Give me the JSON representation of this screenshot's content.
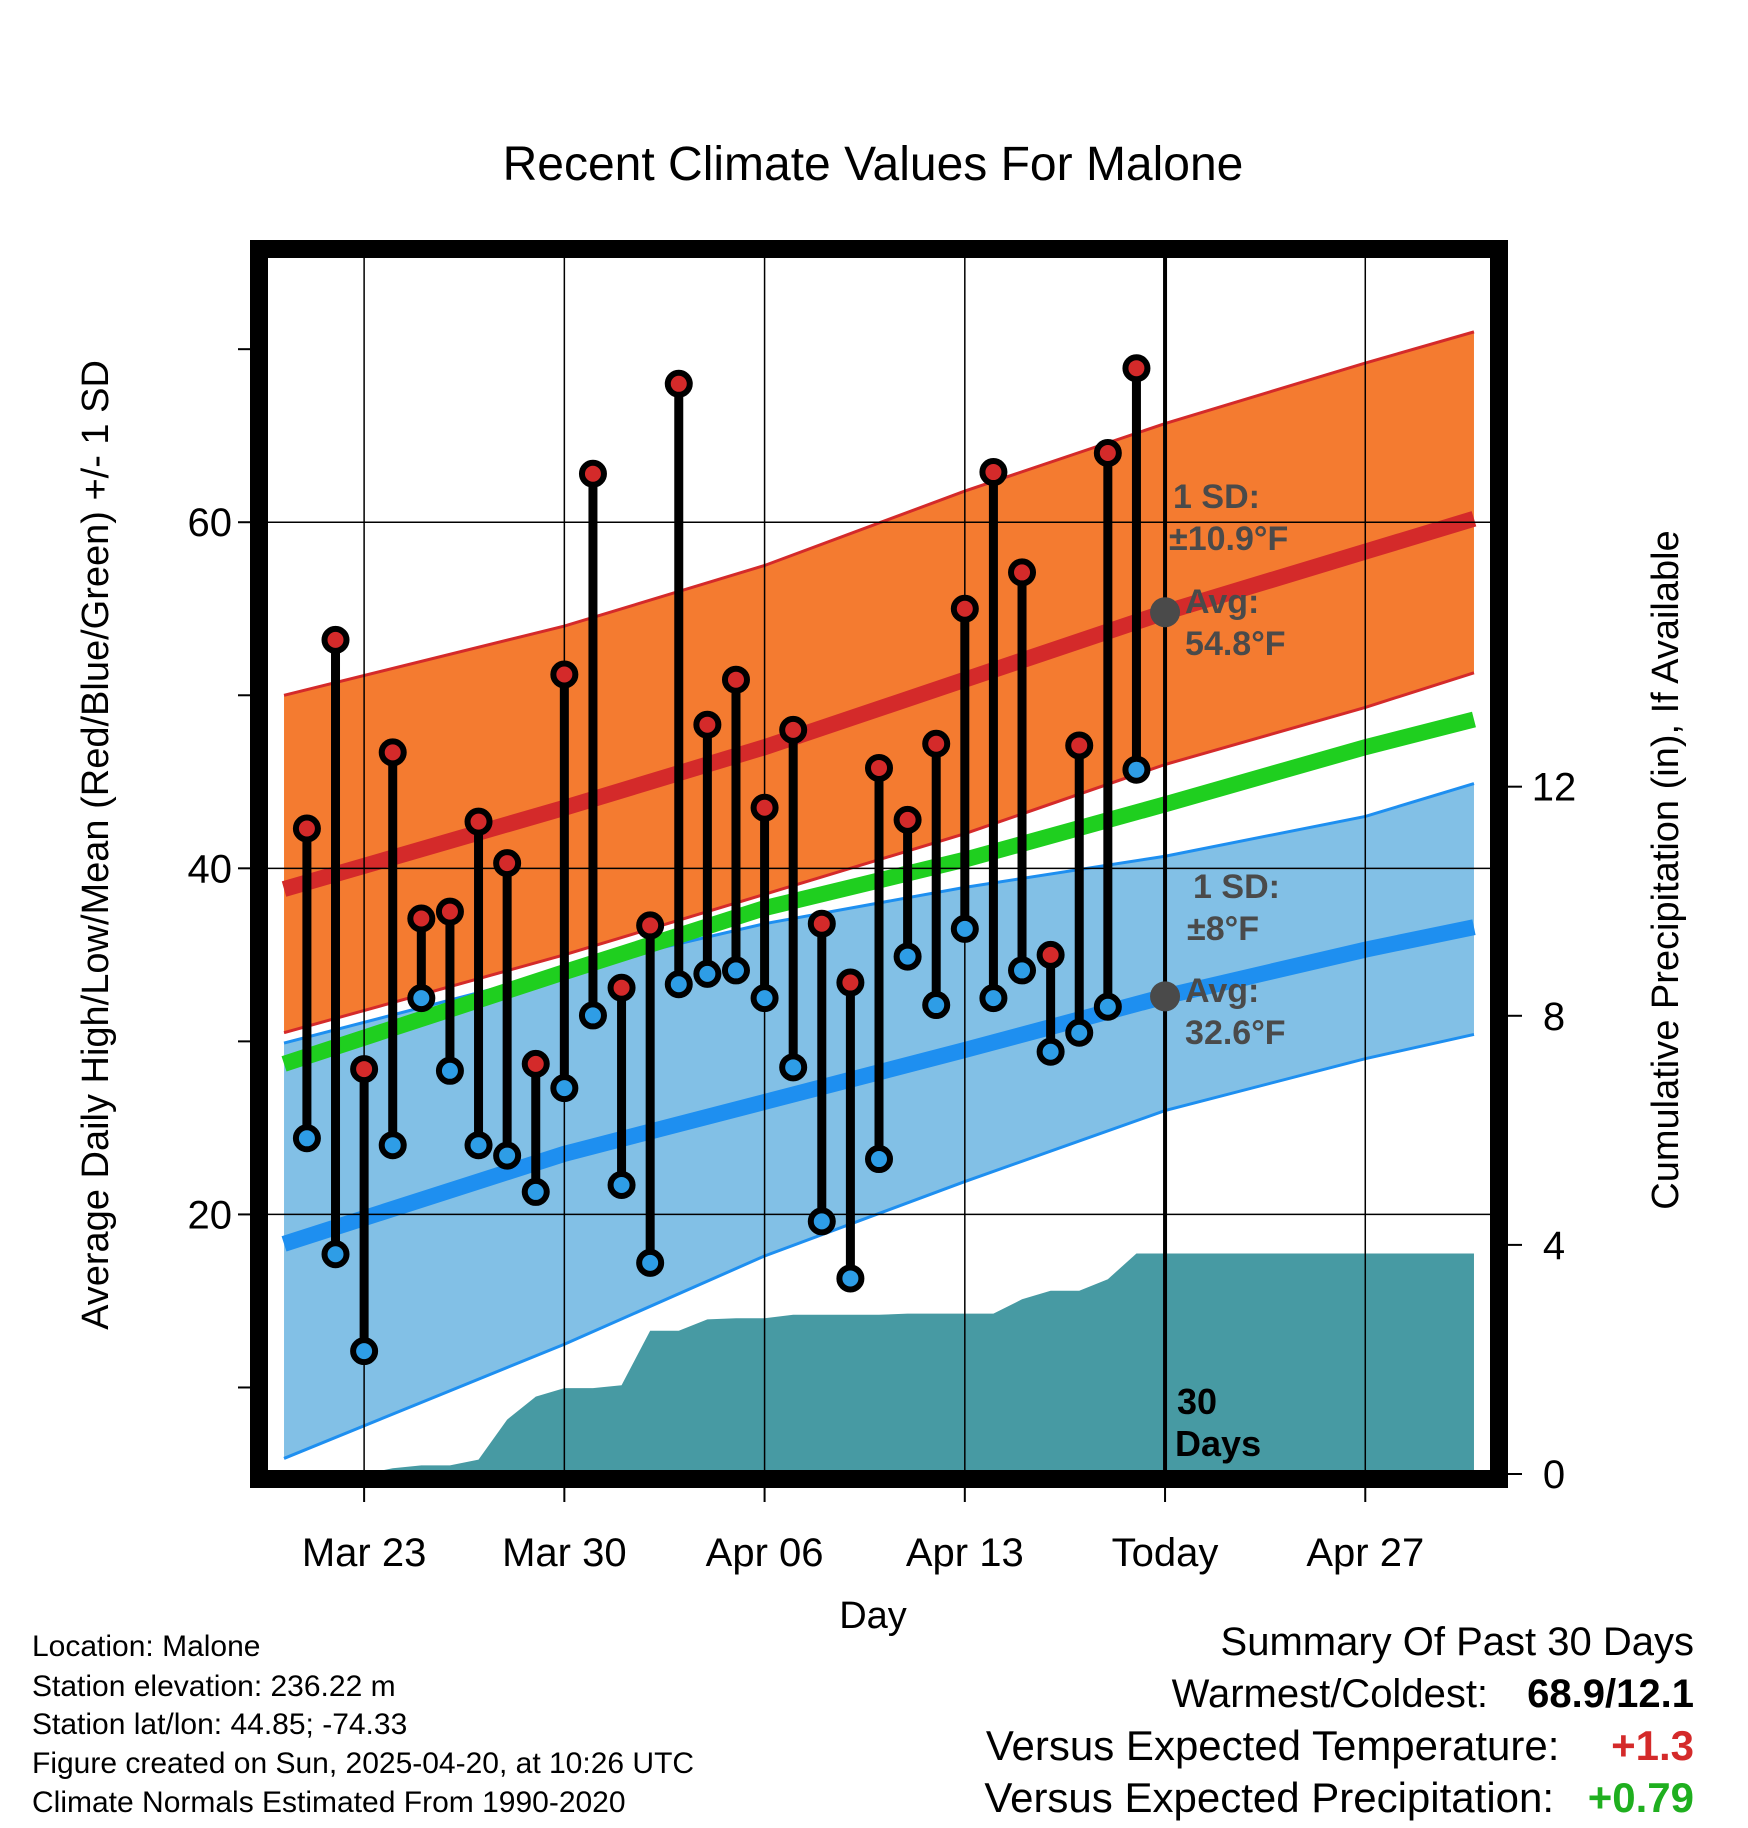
{
  "chart_data": {
    "type": "line",
    "title": "Recent Climate Values For Malone",
    "xlabel": "Day",
    "ylabel_left": "Average Daily High/Low/Mean (Red/Blue/Green) +/- 1 SD",
    "ylabel_right": "Cumulative Precipitation (in), If Available",
    "x_range": [
      -3.5,
      39.5
    ],
    "ylim_left": [
      5,
      75.5
    ],
    "ylim_right": [
      0,
      21.3
    ],
    "x_tick_positions": [
      0,
      7,
      14,
      21,
      28,
      35
    ],
    "x_tick_labels": [
      "Mar 23",
      "Mar 30",
      "Apr 06",
      "Apr 13",
      "Today",
      "Apr 27"
    ],
    "y_ticks_left": [
      20,
      40,
      60
    ],
    "y_minor_ticks_left": [
      10,
      30,
      50,
      70
    ],
    "y_ticks_right": [
      0,
      4,
      8,
      12
    ],
    "grid": true,
    "today_index": 28,
    "observations": {
      "day_index": [
        -2,
        -1,
        0,
        1,
        2,
        3,
        4,
        5,
        6,
        7,
        8,
        9,
        10,
        11,
        12,
        13,
        14,
        15,
        16,
        17,
        18,
        19,
        20,
        21,
        22,
        23,
        24,
        25,
        26,
        27
      ],
      "high": [
        42.3,
        53.2,
        28.4,
        46.7,
        37.1,
        37.5,
        42.7,
        40.3,
        28.7,
        51.2,
        62.8,
        33.1,
        36.7,
        68.0,
        48.3,
        50.9,
        43.5,
        48.0,
        36.8,
        33.4,
        45.8,
        42.8,
        47.2,
        55.0,
        62.9,
        57.1,
        35.0,
        47.1,
        64.0,
        68.9
      ],
      "low": [
        24.4,
        17.7,
        12.1,
        24.0,
        32.5,
        28.3,
        24.0,
        23.4,
        21.3,
        27.3,
        31.5,
        21.7,
        17.2,
        33.3,
        33.9,
        34.1,
        32.5,
        28.5,
        19.6,
        16.3,
        23.2,
        34.9,
        32.1,
        36.5,
        32.5,
        34.1,
        29.4,
        30.5,
        32.0,
        45.7
      ]
    },
    "normals": {
      "day_index": [
        -2.8,
        7,
        14,
        21,
        28,
        35,
        38.8
      ],
      "high_mean": [
        38.8,
        43.5,
        47.0,
        50.9,
        54.8,
        58.3,
        60.2
      ],
      "high_upper": [
        50.0,
        54.0,
        57.5,
        61.8,
        65.7,
        69.2,
        71.0
      ],
      "high_lower": [
        30.5,
        35.0,
        38.5,
        42.0,
        46.0,
        49.3,
        51.3
      ],
      "mean": [
        28.7,
        34.0,
        37.7,
        40.5,
        43.7,
        47.0,
        48.6
      ],
      "low_mean": [
        18.3,
        23.5,
        26.5,
        29.5,
        32.6,
        35.3,
        36.6
      ],
      "low_upper": [
        29.9,
        34.1,
        36.8,
        38.9,
        40.7,
        43.0,
        44.9
      ],
      "low_lower": [
        5.9,
        12.5,
        17.6,
        21.9,
        26.0,
        29.0,
        30.4
      ]
    },
    "precipitation": {
      "day_index": [
        -2.8,
        0,
        1,
        2,
        3,
        4,
        5,
        6,
        7,
        8,
        9,
        10,
        11,
        12,
        13,
        14,
        15,
        16,
        17,
        18,
        19,
        20,
        21,
        22,
        23,
        24,
        25,
        26,
        27,
        38.8
      ],
      "cumulative": [
        0.0,
        0.0,
        0.1,
        0.15,
        0.15,
        0.25,
        0.95,
        1.35,
        1.5,
        1.5,
        1.55,
        2.5,
        2.5,
        2.7,
        2.72,
        2.72,
        2.78,
        2.78,
        2.78,
        2.78,
        2.8,
        2.8,
        2.8,
        2.8,
        3.05,
        3.2,
        3.2,
        3.4,
        3.85,
        3.85
      ]
    },
    "annotations": {
      "high_sd_line1": "1 SD:",
      "high_sd_line2": "±10.9°F",
      "high_avg_line1": "Avg:",
      "high_avg_line2": "54.8°F",
      "low_sd_line1": "1 SD:",
      "low_sd_line2": "±8°F",
      "low_avg_line1": "Avg:",
      "low_avg_line2": "32.6°F",
      "window_line1": "30",
      "window_line2": "Days"
    },
    "colors": {
      "high_band": "#f47b30",
      "high_mean": "#d42a2a",
      "low_band": "#82c0e6",
      "low_mean": "#1e8ff0",
      "mean": "#1fcf1f",
      "precip": "#479aa3",
      "high_marker": "#d42a2a",
      "low_marker": "#2e9de6",
      "annotation": "#4a4a4a"
    }
  },
  "info": {
    "location": "Location: Malone",
    "elevation": "Station elevation: 236.22 m",
    "latlon": "Station lat/lon: 44.85; -74.33",
    "created": "Figure created on Sun, 2025-04-20, at 10:26 UTC",
    "normals": "Climate Normals Estimated From 1990-2020"
  },
  "summary": {
    "heading": "Summary Of Past 30 Days",
    "warmest_label": "Warmest/Coldest:",
    "warmest_value": "68.9/12.1",
    "temp_label": "Versus Expected Temperature:",
    "temp_value": "+1.3",
    "temp_color": "#d42a2a",
    "precip_label": "Versus Expected Precipitation:",
    "precip_value": "+0.79",
    "precip_color": "#1faf1f"
  }
}
